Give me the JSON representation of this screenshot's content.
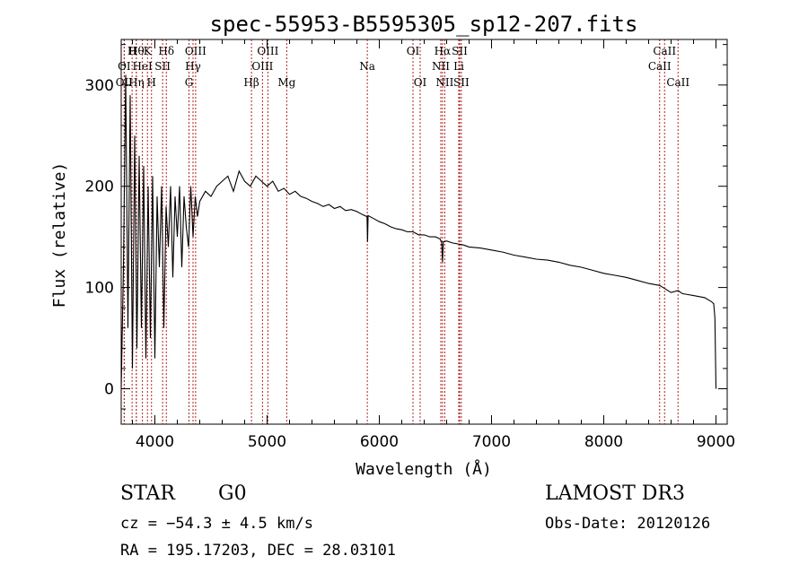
{
  "chart_data": {
    "type": "line",
    "title": "spec-55953-B5595305_sp12-207.fits",
    "xlabel": "Wavelength (Å)",
    "ylabel": "Flux (relative)",
    "xlim": [
      3700,
      9100
    ],
    "ylim": [
      -35,
      345
    ],
    "x_ticks": [
      4000,
      5000,
      6000,
      7000,
      8000,
      9000
    ],
    "y_ticks": [
      0,
      100,
      200,
      300
    ],
    "line_color": "#000000",
    "marker_color": "#b22222",
    "series": [
      {
        "name": "spectrum",
        "x": [
          3700,
          3720,
          3740,
          3760,
          3780,
          3800,
          3820,
          3840,
          3860,
          3880,
          3900,
          3920,
          3940,
          3960,
          3980,
          4000,
          4020,
          4040,
          4060,
          4080,
          4100,
          4120,
          4140,
          4160,
          4180,
          4200,
          4220,
          4240,
          4260,
          4280,
          4300,
          4320,
          4340,
          4360,
          4380,
          4400,
          4450,
          4500,
          4550,
          4600,
          4650,
          4700,
          4750,
          4800,
          4850,
          4900,
          4950,
          5000,
          5050,
          5100,
          5150,
          5200,
          5250,
          5300,
          5350,
          5400,
          5450,
          5500,
          5550,
          5600,
          5650,
          5700,
          5750,
          5800,
          5850,
          5890,
          5895,
          5900,
          5950,
          6000,
          6050,
          6100,
          6150,
          6200,
          6250,
          6300,
          6350,
          6400,
          6450,
          6500,
          6540,
          6555,
          6563,
          6570,
          6600,
          6650,
          6700,
          6750,
          6800,
          6900,
          7000,
          7100,
          7200,
          7300,
          7400,
          7500,
          7600,
          7700,
          7800,
          7900,
          8000,
          8100,
          8200,
          8300,
          8400,
          8498,
          8542,
          8600,
          8662,
          8700,
          8800,
          8900,
          8960,
          8980,
          8990,
          9000
        ],
        "values": [
          0,
          120,
          310,
          60,
          290,
          20,
          250,
          40,
          230,
          60,
          220,
          30,
          200,
          50,
          210,
          30,
          190,
          120,
          200,
          60,
          180,
          140,
          200,
          110,
          190,
          150,
          200,
          120,
          190,
          160,
          140,
          200,
          150,
          190,
          170,
          185,
          195,
          190,
          200,
          205,
          210,
          195,
          215,
          205,
          200,
          210,
          205,
          200,
          205,
          195,
          198,
          192,
          195,
          190,
          188,
          185,
          183,
          180,
          182,
          178,
          180,
          176,
          177,
          175,
          172,
          170,
          145,
          171,
          168,
          165,
          163,
          160,
          158,
          157,
          155,
          155,
          152,
          152,
          150,
          150,
          148,
          145,
          125,
          145,
          146,
          144,
          143,
          142,
          140,
          139,
          137,
          135,
          132,
          130,
          128,
          127,
          125,
          122,
          120,
          117,
          114,
          112,
          110,
          107,
          104,
          102,
          99,
          95,
          97,
          94,
          92,
          90,
          86,
          84,
          70,
          0
        ]
      }
    ],
    "lines": [
      {
        "label": "H",
        "x": 3797,
        "row": 1
      },
      {
        "label": "OII",
        "x": 3727,
        "row": 3
      },
      {
        "label": "Hθ",
        "x": 3835,
        "row": 1
      },
      {
        "label": "OI",
        "x": 3727,
        "row": 2
      },
      {
        "label": "K",
        "x": 3934,
        "row": 1
      },
      {
        "label": "HeI",
        "x": 3889,
        "row": 2
      },
      {
        "label": "SII",
        "x": 4069,
        "row": 2
      },
      {
        "label": "Hη",
        "x": 3835,
        "row": 3
      },
      {
        "label": "H",
        "x": 3970,
        "row": 3
      },
      {
        "label": "Hδ",
        "x": 4102,
        "row": 1
      },
      {
        "label": "OIII",
        "x": 4363,
        "row": 1
      },
      {
        "label": "Hγ",
        "x": 4340,
        "row": 2
      },
      {
        "label": "G",
        "x": 4304,
        "row": 3
      },
      {
        "label": "OIII",
        "x": 5007,
        "row": 1
      },
      {
        "label": "OIII",
        "x": 4959,
        "row": 2
      },
      {
        "label": "Hβ",
        "x": 4861,
        "row": 3
      },
      {
        "label": "Mg",
        "x": 5175,
        "row": 3
      },
      {
        "label": "Na",
        "x": 5893,
        "row": 2
      },
      {
        "label": "OI",
        "x": 6300,
        "row": 1
      },
      {
        "label": "OI",
        "x": 6364,
        "row": 3
      },
      {
        "label": "Hα",
        "x": 6563,
        "row": 1
      },
      {
        "label": "SII",
        "x": 6716,
        "row": 1
      },
      {
        "label": "NII",
        "x": 6548,
        "row": 2
      },
      {
        "label": "Li",
        "x": 6708,
        "row": 2
      },
      {
        "label": "NII",
        "x": 6583,
        "row": 3
      },
      {
        "label": "SII",
        "x": 6731,
        "row": 3
      },
      {
        "label": "CaII",
        "x": 8542,
        "row": 1
      },
      {
        "label": "CaII",
        "x": 8498,
        "row": 2
      },
      {
        "label": "CaII",
        "x": 8662,
        "row": 3
      }
    ]
  },
  "info": {
    "class": "STAR",
    "subclass": "G0",
    "cz": "cz = −54.3 ± 4.5 km/s",
    "coords": "RA = 195.17203, DEC =  28.03101",
    "survey": "LAMOST DR3",
    "obs_date": "Obs-Date: 20120126"
  }
}
